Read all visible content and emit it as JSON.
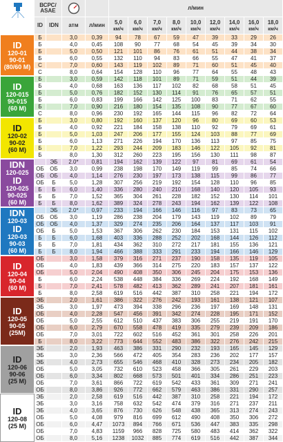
{
  "header": {
    "asae": "ВСРС/ ASAE",
    "id": "ID",
    "idn": "IDN",
    "atm": "атм",
    "flow": "л/мин",
    "speed_title": "л/мин",
    "speeds": [
      "5,0",
      "6,0",
      "7,0",
      "8,0",
      "10,0",
      "12,0",
      "14,0",
      "16,0",
      "18,0"
    ],
    "speed_unit": "км/ч"
  },
  "groups": [
    {
      "label": [
        "ID",
        "120-01",
        "90-01",
        "(80/60 M)"
      ],
      "color": "#f07f1e",
      "tint": "#fde2c6",
      "rows": [
        {
          "id": "Б",
          "atm": "3,0",
          "flow": "0,39",
          "rates": [
            94,
            78,
            67,
            59,
            47,
            39,
            33,
            29,
            26
          ]
        },
        {
          "id": "Б",
          "atm": "4,0",
          "flow": "0,45",
          "rates": [
            108,
            90,
            77,
            68,
            54,
            45,
            39,
            34,
            30
          ]
        },
        {
          "id": "Б",
          "atm": "5,0",
          "flow": "0,50",
          "rates": [
            121,
            101,
            86,
            76,
            61,
            51,
            44,
            38,
            34
          ]
        },
        {
          "id": "Б",
          "atm": "6,0",
          "flow": "0,55",
          "rates": [
            132,
            110,
            94,
            83,
            66,
            55,
            47,
            41,
            37
          ]
        },
        {
          "id": "С",
          "atm": "7,0",
          "flow": "0,60",
          "rates": [
            143,
            119,
            102,
            89,
            71,
            60,
            51,
            45,
            40
          ]
        },
        {
          "id": "С",
          "atm": "8,0",
          "flow": "0,64",
          "rates": [
            154,
            128,
            110,
            96,
            77,
            64,
            55,
            48,
            43
          ]
        }
      ]
    },
    {
      "label": [
        "ID",
        "120-015",
        "90-015",
        "(60 M)"
      ],
      "color": "#3aa53a",
      "tint": "#d4ecd0",
      "rows": [
        {
          "id": "Б",
          "atm": "3,0",
          "flow": "0,59",
          "rates": [
            142,
            118,
            101,
            89,
            71,
            59,
            51,
            44,
            39
          ]
        },
        {
          "id": "Б",
          "atm": "4,0",
          "flow": "0,68",
          "rates": [
            163,
            136,
            117,
            102,
            82,
            68,
            58,
            51,
            45
          ]
        },
        {
          "id": "Б",
          "atm": "5,0",
          "flow": "0,76",
          "rates": [
            182,
            152,
            130,
            114,
            91,
            76,
            65,
            57,
            51
          ]
        },
        {
          "id": "Б",
          "atm": "6,0",
          "flow": "0,83",
          "rates": [
            199,
            166,
            142,
            125,
            100,
            83,
            71,
            62,
            55
          ]
        },
        {
          "id": "Б",
          "atm": "7,0",
          "flow": "0,90",
          "rates": [
            216,
            180,
            154,
            135,
            108,
            90,
            77,
            67,
            60
          ]
        },
        {
          "id": "С",
          "atm": "8,0",
          "flow": "0,96",
          "rates": [
            230,
            192,
            165,
            144,
            115,
            96,
            82,
            72,
            64
          ]
        }
      ]
    },
    {
      "label": [
        "ID",
        "120-02",
        "90-02",
        "(60 M)"
      ],
      "color": "#f2e600",
      "tint": "#fbf6bf",
      "dark": true,
      "rows": [
        {
          "id": "Б",
          "atm": "3,0",
          "flow": "0,80",
          "rates": [
            192,
            160,
            137,
            120,
            96,
            80,
            69,
            60,
            53
          ]
        },
        {
          "id": "Б",
          "atm": "4,0",
          "flow": "0,92",
          "rates": [
            221,
            184,
            158,
            138,
            110,
            92,
            79,
            69,
            61
          ]
        },
        {
          "id": "Б",
          "atm": "5,0",
          "flow": "1,03",
          "rates": [
            247,
            206,
            177,
            155,
            124,
            103,
            88,
            77,
            69
          ]
        },
        {
          "id": "Б",
          "atm": "6,0",
          "flow": "1,13",
          "rates": [
            271,
            226,
            194,
            170,
            136,
            113,
            97,
            85,
            75
          ]
        },
        {
          "id": "Б",
          "atm": "7,0",
          "flow": "1,22",
          "rates": [
            293,
            244,
            209,
            183,
            146,
            122,
            105,
            92,
            81
          ]
        },
        {
          "id": "Б",
          "atm": "8,0",
          "flow": "1,30",
          "rates": [
            312,
            260,
            223,
            195,
            156,
            130,
            111,
            98,
            87
          ]
        }
      ]
    },
    {
      "label": [
        "IDN",
        "120-025",
        "ID",
        "120-025",
        "90-025",
        "(60 M)"
      ],
      "color": "#8a4a9e",
      "tint": "#e6d7ec",
      "rows": [
        {
          "idn": "ЭБ",
          "atm": "2.0*",
          "flow": "0,81",
          "rates": [
            194,
            162,
            139,
            122,
            97,
            81,
            69,
            61,
            54
          ]
        },
        {
          "id": "ОБ",
          "idn": "ОБ",
          "atm": "3,0",
          "flow": "0,99",
          "rates": [
            238,
            198,
            170,
            149,
            119,
            99,
            85,
            74,
            66
          ]
        },
        {
          "id": "ОБ",
          "idn": "ОБ",
          "atm": "4,0",
          "flow": "1,14",
          "rates": [
            276,
            230,
            197,
            173,
            138,
            115,
            99,
            86,
            77
          ]
        },
        {
          "id": "ОБ",
          "idn": "Б",
          "atm": "5,0",
          "flow": "1,28",
          "rates": [
            307,
            256,
            219,
            192,
            154,
            128,
            110,
            96,
            85
          ]
        },
        {
          "id": "Б",
          "idn": "Б",
          "atm": "6,0",
          "flow": "1,40",
          "rates": [
            336,
            280,
            240,
            210,
            168,
            140,
            120,
            105,
            93
          ]
        },
        {
          "id": "Б",
          "idn": "Б",
          "atm": "7,0",
          "flow": "1,52",
          "rates": [
            365,
            304,
            261,
            228,
            182,
            152,
            130,
            114,
            101
          ]
        },
        {
          "id": "Б",
          "idn": "Б",
          "atm": "8,0",
          "flow": "1,62",
          "rates": [
            389,
            324,
            278,
            243,
            194,
            162,
            139,
            122,
            108
          ]
        }
      ]
    },
    {
      "label": [
        "IDN",
        "120-03",
        "ID",
        "120-03",
        "90-03",
        "(60 M)"
      ],
      "color": "#1f78c0",
      "tint": "#cfe2f3",
      "rows": [
        {
          "idn": "ЭБ",
          "atm": "2.0*",
          "flow": "0,97",
          "rates": [
            233,
            194,
            166,
            146,
            116,
            97,
            83,
            73,
            65
          ]
        },
        {
          "id": "ОБ",
          "idn": "ОБ",
          "atm": "3,0",
          "flow": "1,19",
          "rates": [
            286,
            238,
            204,
            179,
            143,
            119,
            102,
            89,
            79
          ]
        },
        {
          "id": "ОБ",
          "idn": "ОБ",
          "atm": "4,0",
          "flow": "1,37",
          "rates": [
            329,
            274,
            235,
            206,
            164,
            137,
            117,
            103,
            91
          ]
        },
        {
          "id": "ОБ",
          "idn": "Б",
          "atm": "5,0",
          "flow": "1,53",
          "rates": [
            367,
            306,
            262,
            230,
            184,
            153,
            131,
            115,
            102
          ]
        },
        {
          "id": "Б",
          "idn": "Б",
          "atm": "6,0",
          "flow": "1,68",
          "rates": [
            403,
            336,
            288,
            252,
            202,
            168,
            144,
            126,
            112
          ]
        },
        {
          "id": "Б",
          "idn": "Б",
          "atm": "7,0",
          "flow": "1,81",
          "rates": [
            434,
            362,
            310,
            272,
            217,
            181,
            155,
            136,
            121
          ]
        },
        {
          "id": "Б",
          "idn": "Б",
          "atm": "8,0",
          "flow": "1,94",
          "rates": [
            466,
            388,
            333,
            291,
            233,
            194,
            166,
            146,
            129
          ]
        }
      ]
    },
    {
      "label": [
        "ID",
        "120-04",
        "90-04",
        "(60 M)"
      ],
      "color": "#d8262c",
      "tint": "#f6cfd0",
      "rows": [
        {
          "id": "ОБ",
          "atm": "3,0",
          "flow": "1,58",
          "rates": [
            379,
            316,
            271,
            237,
            190,
            158,
            135,
            119,
            105
          ]
        },
        {
          "id": "ОБ",
          "atm": "4,0",
          "flow": "1,83",
          "rates": [
            439,
            366,
            314,
            275,
            220,
            183,
            157,
            137,
            122
          ]
        },
        {
          "id": "ОБ",
          "atm": "5,0",
          "flow": "2,04",
          "rates": [
            490,
            408,
            350,
            306,
            245,
            204,
            175,
            153,
            136
          ]
        },
        {
          "id": "Б",
          "atm": "6,0",
          "flow": "2,24",
          "rates": [
            538,
            448,
            384,
            336,
            269,
            224,
            192,
            168,
            149
          ]
        },
        {
          "id": "Б",
          "atm": "7,0",
          "flow": "2,41",
          "rates": [
            578,
            482,
            413,
            362,
            289,
            241,
            207,
            181,
            161
          ]
        },
        {
          "id": "Б",
          "atm": "8,0",
          "flow": "2,58",
          "rates": [
            619,
            516,
            442,
            387,
            310,
            258,
            221,
            194,
            172
          ]
        }
      ]
    },
    {
      "label": [
        "ID",
        "120-05",
        "90-05",
        "(25M)"
      ],
      "color": "#7b2a1a",
      "tint": "#e9cfc4",
      "rows": [
        {
          "id": "ЭБ",
          "atm": "2,0",
          "flow": "1,61",
          "rates": [
            386,
            322,
            276,
            242,
            193,
            161,
            138,
            121,
            107
          ]
        },
        {
          "id": "ЭБ",
          "atm": "3,0",
          "flow": "1,97",
          "rates": [
            473,
            394,
            338,
            296,
            236,
            197,
            169,
            148,
            131
          ]
        },
        {
          "id": "ОБ",
          "atm": "4,0",
          "flow": "2,28",
          "rates": [
            547,
            456,
            391,
            342,
            274,
            228,
            195,
            171,
            152
          ]
        },
        {
          "id": "ОБ",
          "atm": "5,0",
          "flow": "2,55",
          "rates": [
            612,
            510,
            437,
            383,
            306,
            255,
            219,
            191,
            170
          ]
        },
        {
          "id": "ОБ",
          "atm": "6,0",
          "flow": "2,79",
          "rates": [
            670,
            558,
            478,
            419,
            335,
            279,
            239,
            209,
            186
          ]
        },
        {
          "id": "ОБ",
          "atm": "7,0",
          "flow": "3,01",
          "rates": [
            722,
            602,
            516,
            452,
            361,
            301,
            258,
            226,
            201
          ]
        },
        {
          "id": "Б",
          "atm": "8,0",
          "flow": "3,22",
          "rates": [
            773,
            644,
            552,
            483,
            386,
            322,
            276,
            242,
            215
          ]
        }
      ]
    },
    {
      "label": [
        "ID",
        "120-06",
        "90-06",
        "(25 M)"
      ],
      "color": "#a0a0a0",
      "tint": "#e4e4e4",
      "dark": true,
      "rows": [
        {
          "id": "ЭБ",
          "atm": "2,0",
          "flow": "1,93",
          "rates": [
            463,
            386,
            331,
            290,
            232,
            193,
            165,
            145,
            129
          ]
        },
        {
          "id": "ЭБ",
          "atm": "3,0",
          "flow": "2,36",
          "rates": [
            566,
            472,
            405,
            354,
            283,
            236,
            202,
            177,
            157
          ]
        },
        {
          "id": "ЭБ",
          "atm": "4,0",
          "flow": "2,73",
          "rates": [
            655,
            546,
            468,
            410,
            328,
            273,
            234,
            205,
            182
          ]
        },
        {
          "id": "ОБ",
          "atm": "5,0",
          "flow": "3,05",
          "rates": [
            732,
            610,
            523,
            458,
            366,
            305,
            261,
            229,
            203
          ]
        },
        {
          "id": "ОБ",
          "atm": "6,0",
          "flow": "3,34",
          "rates": [
            802,
            668,
            573,
            501,
            401,
            334,
            286,
            251,
            223
          ]
        },
        {
          "id": "ОБ",
          "atm": "7,0",
          "flow": "3,61",
          "rates": [
            866,
            722,
            619,
            542,
            433,
            361,
            309,
            271,
            241
          ]
        },
        {
          "id": "ОБ",
          "atm": "8,0",
          "flow": "3,86",
          "rates": [
            926,
            772,
            662,
            579,
            463,
            386,
            331,
            290,
            257
          ]
        }
      ]
    },
    {
      "label": [
        "ID",
        "120-08",
        "(25 M)"
      ],
      "color": "#ffffff",
      "tint": "#f2f2f2",
      "dark": true,
      "rows": [
        {
          "id": "ЭБ",
          "atm": "2,0",
          "flow": "2,58",
          "rates": [
            619,
            516,
            442,
            387,
            310,
            258,
            221,
            194,
            172
          ]
        },
        {
          "id": "ЭБ",
          "atm": "3,0",
          "flow": "3,16",
          "rates": [
            758,
            632,
            542,
            474,
            379,
            316,
            271,
            237,
            211
          ]
        },
        {
          "id": "ЭБ",
          "atm": "4,0",
          "flow": "3,65",
          "rates": [
            876,
            730,
            626,
            548,
            438,
            365,
            313,
            274,
            243
          ]
        },
        {
          "id": "ОБ",
          "atm": "5,0",
          "flow": "4,08",
          "rates": [
            979,
            816,
            699,
            612,
            490,
            408,
            350,
            306,
            272
          ]
        },
        {
          "id": "ОБ",
          "atm": "6,0",
          "flow": "4,47",
          "rates": [
            1073,
            894,
            766,
            671,
            536,
            447,
            383,
            335,
            298
          ]
        },
        {
          "id": "ОБ",
          "atm": "7,0",
          "flow": "4,83",
          "rates": [
            1159,
            966,
            828,
            725,
            580,
            483,
            414,
            362,
            322
          ]
        },
        {
          "id": "ОБ",
          "atm": "8,0",
          "flow": "5,16",
          "rates": [
            1238,
            1032,
            885,
            774,
            619,
            516,
            442,
            387,
            344
          ]
        }
      ]
    }
  ]
}
